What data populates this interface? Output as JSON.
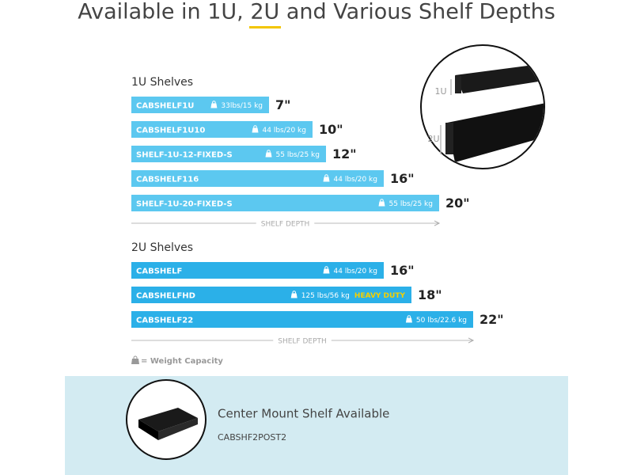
{
  "title": "Available in 1U, 2U and Various Shelf Depths",
  "groups": [
    {
      "heading": "1U Shelves",
      "axis_label": "SHELF DEPTH",
      "items": [
        {
          "model": "CABSHELF1U",
          "capacity": "33lbs/15 kg",
          "depth": "7\""
        },
        {
          "model": "CABSHELF1U10",
          "capacity": "44 lbs/20 kg",
          "depth": "10\""
        },
        {
          "model": "SHELF-1U-12-FIXED-S",
          "capacity": "55 lbs/25 kg",
          "depth": "12\""
        },
        {
          "model": "CABSHELF116",
          "capacity": "44 lbs/20 kg",
          "depth": "16\""
        },
        {
          "model": "SHELF-1U-20-FIXED-S",
          "capacity": "55 lbs/25 kg",
          "depth": "20\""
        }
      ]
    },
    {
      "heading": "2U Shelves",
      "axis_label": "SHELF DEPTH",
      "items": [
        {
          "model": "CABSHELF",
          "capacity": "44 lbs/20 kg",
          "depth": "16\""
        },
        {
          "model": "CABSHELFHD",
          "capacity": "125 lbs/56 kg",
          "badge": "HEAVY DUTY",
          "depth": "18\""
        },
        {
          "model": "CABSHELF22",
          "capacity": "50 lbs/22.6 kg",
          "depth": "22\""
        }
      ]
    }
  ],
  "legend": "= Weight Capacity",
  "inset": {
    "top_label": "1U",
    "bottom_label": "2U"
  },
  "footer": {
    "title": "Center Mount Shelf Available",
    "model": "CABSHF2POST2"
  }
}
